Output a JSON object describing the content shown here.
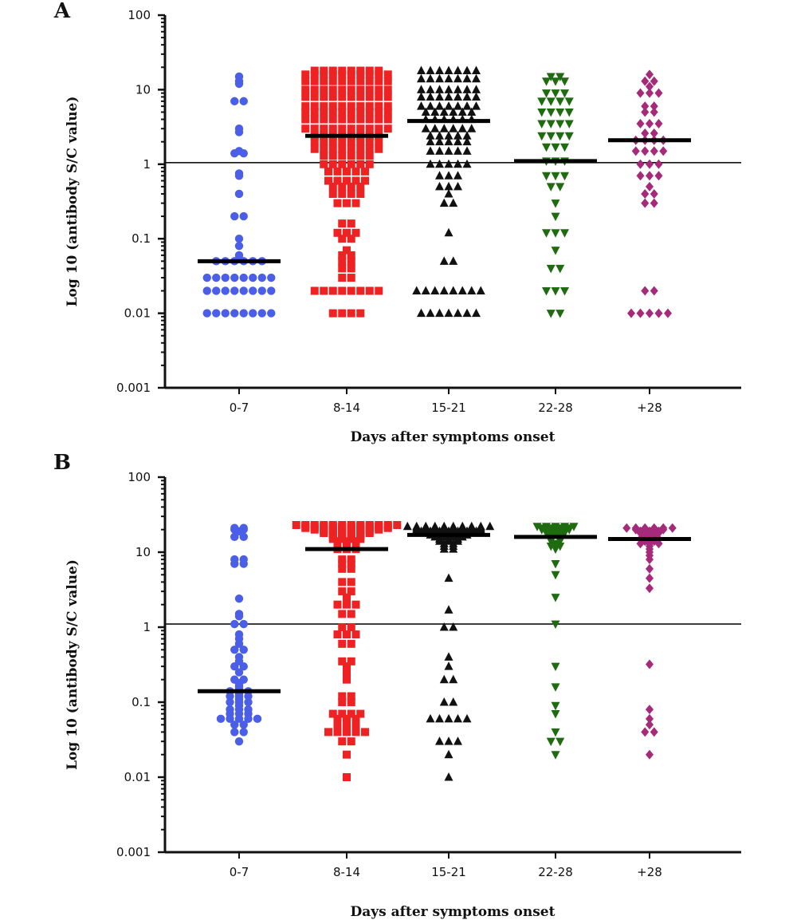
{
  "chart_data": [
    {
      "panel": "A",
      "type": "scatter",
      "categories": [
        "0-7",
        "8-14",
        "15-21",
        "22-28",
        "+28"
      ],
      "xlabel": "Days after symptoms onset",
      "ylabel": "Log 10 (antibody S/C value)",
      "yscale": "log",
      "ylim": [
        0.001,
        100
      ],
      "ticks": [
        "100",
        "10",
        "1",
        "0.1",
        "0.01",
        "0.001"
      ],
      "cutoff": 1.05,
      "grid": false,
      "series": [
        {
          "color": "#4a5ee8",
          "marker": "circle",
          "median": 0.05,
          "values": [
            15,
            13,
            12,
            7,
            7,
            3,
            2.7,
            1.4,
            1.4,
            1.5,
            0.75,
            0.7,
            0.4,
            0.2,
            0.2,
            0.1,
            0.08,
            0.06,
            0.05,
            0.05,
            0.05,
            0.05,
            0.05,
            0.05,
            0.03,
            0.03,
            0.03,
            0.03,
            0.03,
            0.03,
            0.03,
            0.03,
            0.02,
            0.02,
            0.02,
            0.02,
            0.02,
            0.02,
            0.02,
            0.02,
            0.01,
            0.01,
            0.01,
            0.01,
            0.01,
            0.01,
            0.01,
            0.01
          ]
        },
        {
          "color": "#ee2222",
          "marker": "square",
          "median": 2.4,
          "values": [
            18,
            18,
            18,
            18,
            18,
            18,
            18,
            18,
            16,
            16,
            16,
            16,
            16,
            16,
            16,
            16,
            16,
            16,
            13,
            13,
            13,
            13,
            13,
            13,
            13,
            13,
            13,
            13,
            10,
            10,
            10,
            10,
            10,
            10,
            10,
            10,
            10,
            10,
            8,
            8,
            8,
            8,
            8,
            8,
            8,
            8,
            8,
            8,
            6,
            6,
            6,
            6,
            6,
            6,
            6,
            6,
            6,
            6,
            5,
            5,
            5,
            5,
            5,
            5,
            5,
            5,
            5,
            5,
            4,
            4,
            4,
            4,
            4,
            4,
            4,
            4,
            4,
            4,
            3,
            3,
            3,
            3,
            3,
            3,
            3,
            3,
            3,
            3,
            2.4,
            2.4,
            2.4,
            2.4,
            2.4,
            2.4,
            2.4,
            2.4,
            2,
            2,
            2,
            2,
            2,
            2,
            2,
            2,
            1.6,
            1.6,
            1.6,
            1.6,
            1.6,
            1.6,
            1.6,
            1.6,
            1.3,
            1.3,
            1.3,
            1.3,
            1.3,
            1.3,
            1,
            1,
            1,
            1,
            1,
            1,
            0.8,
            0.8,
            0.8,
            0.8,
            0.8,
            0.6,
            0.6,
            0.6,
            0.6,
            0.6,
            0.5,
            0.5,
            0.5,
            0.5,
            0.4,
            0.4,
            0.4,
            0.4,
            0.3,
            0.3,
            0.3,
            0.16,
            0.16,
            0.12,
            0.12,
            0.12,
            0.1,
            0.1,
            0.07,
            0.06,
            0.06,
            0.05,
            0.05,
            0.04,
            0.04,
            0.03,
            0.03,
            0.02,
            0.02,
            0.02,
            0.02,
            0.02,
            0.02,
            0.02,
            0.02,
            0.01,
            0.01,
            0.01,
            0.01
          ]
        },
        {
          "color": "#111111",
          "marker": "triangle-up",
          "median": 3.8,
          "values": [
            18,
            18,
            18,
            18,
            18,
            18,
            18,
            14,
            14,
            14,
            14,
            14,
            14,
            14,
            10,
            10,
            10,
            10,
            10,
            10,
            10,
            8,
            8,
            8,
            8,
            8,
            8,
            8,
            6,
            6,
            6,
            6,
            6,
            6,
            6,
            5,
            5,
            5,
            5,
            5,
            5,
            4,
            4,
            4,
            4,
            4,
            4,
            3,
            3,
            3,
            3,
            3,
            3,
            2.4,
            2.4,
            2.4,
            2.4,
            2.4,
            2,
            2,
            2,
            2,
            2,
            1.5,
            1.5,
            1.5,
            1.5,
            1.5,
            1,
            1,
            1,
            1,
            1,
            0.7,
            0.7,
            0.7,
            0.5,
            0.5,
            0.5,
            0.4,
            0.3,
            0.3,
            0.12,
            0.05,
            0.05,
            0.02,
            0.02,
            0.02,
            0.02,
            0.02,
            0.02,
            0.02,
            0.02,
            0.01,
            0.01,
            0.01,
            0.01,
            0.01,
            0.01,
            0.01
          ]
        },
        {
          "color": "#1f6b10",
          "marker": "triangle-down",
          "median": 1.1,
          "values": [
            15,
            15,
            13,
            13,
            13,
            9,
            9,
            9,
            7,
            7,
            7,
            7,
            5,
            5,
            5,
            5,
            3.5,
            3.5,
            3.5,
            3.5,
            2.4,
            2.4,
            2.4,
            2.4,
            1.7,
            1.7,
            1.7,
            1.1,
            1.1,
            1.1,
            0.7,
            0.7,
            0.7,
            0.5,
            0.5,
            0.3,
            0.2,
            0.12,
            0.12,
            0.12,
            0.07,
            0.04,
            0.04,
            0.02,
            0.02,
            0.02,
            0.01,
            0.01
          ]
        },
        {
          "color": "#a52a7a",
          "marker": "diamond",
          "median": 2.1,
          "values": [
            16,
            13,
            13,
            11,
            9,
            9,
            9,
            6,
            6,
            5,
            5,
            3.5,
            3.5,
            3.5,
            2.6,
            2.6,
            2.1,
            2.1,
            2.1,
            2.1,
            1.5,
            1.5,
            1.5,
            1.5,
            1,
            1,
            1,
            0.7,
            0.7,
            0.7,
            0.5,
            0.4,
            0.4,
            0.3,
            0.3,
            0.02,
            0.02,
            0.01,
            0.01,
            0.01,
            0.01,
            0.01
          ]
        }
      ]
    },
    {
      "panel": "B",
      "type": "scatter",
      "categories": [
        "0-7",
        "8-14",
        "15-21",
        "22-28",
        "+28"
      ],
      "xlabel": "Days after symptoms onset",
      "ylabel": "Log 10 (antibody S/C value)",
      "yscale": "log",
      "ylim": [
        0.001,
        100
      ],
      "ticks": [
        "100",
        "10",
        "1",
        "0.1",
        "0.01",
        "0.001"
      ],
      "cutoff": 1.1,
      "grid": false,
      "series": [
        {
          "color": "#4a5ee8",
          "marker": "circle",
          "median": 0.14,
          "values": [
            21,
            21,
            20,
            20,
            19,
            16,
            16,
            8,
            8,
            7,
            7,
            2.4,
            1.5,
            1.4,
            1.1,
            1.1,
            0.8,
            0.7,
            0.6,
            0.5,
            0.5,
            0.4,
            0.35,
            0.3,
            0.3,
            0.25,
            0.2,
            0.2,
            0.18,
            0.17,
            0.16,
            0.15,
            0.14,
            0.14,
            0.14,
            0.13,
            0.12,
            0.12,
            0.12,
            0.11,
            0.1,
            0.1,
            0.1,
            0.09,
            0.08,
            0.08,
            0.08,
            0.07,
            0.07,
            0.07,
            0.06,
            0.06,
            0.06,
            0.06,
            0.06,
            0.05,
            0.05,
            0.04,
            0.04,
            0.03
          ]
        },
        {
          "color": "#ee2222",
          "marker": "square",
          "median": 11,
          "values": [
            23,
            23,
            23,
            23,
            23,
            23,
            23,
            23,
            23,
            23,
            23,
            23,
            22,
            22,
            22,
            22,
            22,
            22,
            22,
            22,
            22,
            22,
            21,
            21,
            21,
            21,
            21,
            21,
            21,
            21,
            21,
            21,
            20,
            20,
            20,
            20,
            20,
            20,
            20,
            20,
            19,
            19,
            19,
            19,
            19,
            19,
            18,
            18,
            18,
            18,
            18,
            18,
            17,
            17,
            17,
            17,
            16,
            16,
            16,
            16,
            15,
            15,
            15,
            15,
            14,
            14,
            14,
            13,
            13,
            13,
            12,
            12,
            12,
            11,
            11,
            11,
            8,
            8,
            7,
            7,
            6,
            6,
            4,
            4,
            3,
            3,
            2.5,
            2,
            2,
            2,
            1.5,
            1.5,
            1,
            1,
            0.8,
            0.8,
            0.8,
            0.6,
            0.6,
            0.35,
            0.35,
            0.3,
            0.25,
            0.2,
            0.12,
            0.12,
            0.1,
            0.1,
            0.07,
            0.07,
            0.07,
            0.07,
            0.06,
            0.06,
            0.06,
            0.05,
            0.05,
            0.05,
            0.04,
            0.04,
            0.04,
            0.04,
            0.04,
            0.03,
            0.03,
            0.02,
            0.01
          ]
        },
        {
          "color": "#111111",
          "marker": "triangle-up",
          "median": 17,
          "values": [
            22,
            22,
            22,
            22,
            22,
            22,
            22,
            22,
            22,
            22,
            21,
            21,
            21,
            21,
            21,
            21,
            21,
            21,
            20,
            20,
            20,
            20,
            20,
            20,
            20,
            20,
            19,
            19,
            19,
            19,
            19,
            19,
            19,
            18,
            18,
            18,
            18,
            18,
            18,
            17,
            17,
            17,
            17,
            17,
            16,
            16,
            16,
            16,
            15,
            15,
            15,
            14,
            14,
            14,
            13,
            13,
            12,
            12,
            11,
            11,
            4.5,
            1.7,
            1,
            1,
            0.4,
            0.3,
            0.2,
            0.2,
            0.1,
            0.1,
            0.06,
            0.06,
            0.06,
            0.06,
            0.06,
            0.03,
            0.03,
            0.03,
            0.02,
            0.01
          ]
        },
        {
          "color": "#1f6b10",
          "marker": "triangle-down",
          "median": 16,
          "values": [
            22,
            22,
            22,
            22,
            22,
            21,
            21,
            21,
            21,
            20,
            20,
            20,
            20,
            19,
            19,
            19,
            18,
            18,
            18,
            17,
            17,
            16,
            16,
            15,
            15,
            14,
            14,
            13,
            12,
            12,
            11,
            7,
            5,
            2.5,
            1.1,
            0.3,
            0.16,
            0.09,
            0.07,
            0.04,
            0.03,
            0.03,
            0.02
          ]
        },
        {
          "color": "#a52a7a",
          "marker": "diamond",
          "median": 15,
          "values": [
            21,
            21,
            21,
            21,
            21,
            21,
            20,
            20,
            20,
            20,
            19,
            19,
            19,
            18,
            18,
            18,
            17,
            17,
            16,
            16,
            15,
            15,
            15,
            14,
            14,
            13,
            13,
            13,
            12,
            11,
            10,
            9,
            8,
            6,
            4.5,
            3.3,
            0.32,
            0.08,
            0.06,
            0.05,
            0.04,
            0.04,
            0.02
          ]
        }
      ]
    }
  ]
}
